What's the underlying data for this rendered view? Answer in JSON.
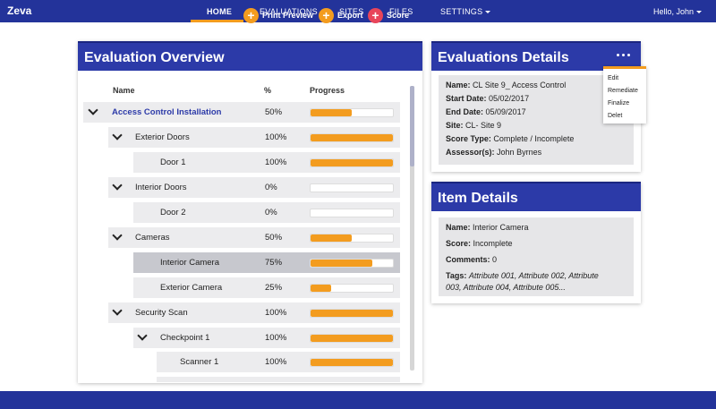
{
  "app": {
    "brand": "Zeva"
  },
  "nav": {
    "items": [
      {
        "label": "HOME",
        "active": true
      },
      {
        "label": "EVALUATIONS"
      },
      {
        "label": "SITES"
      },
      {
        "label": "FILES"
      },
      {
        "label": "SETTINGS",
        "has_caret": true
      }
    ],
    "user": "Hello, John"
  },
  "overview": {
    "title": "Evaluation Overview",
    "actions": [
      {
        "label": "Print Preview",
        "icon": "plus",
        "color": "#f39c1f"
      },
      {
        "label": "Export",
        "icon": "plus",
        "color": "#f39c1f"
      },
      {
        "label": "Score",
        "icon": "plus",
        "color": "#e8455a"
      }
    ],
    "columns": {
      "name": "Name",
      "percent": "%",
      "progress": "Progress"
    },
    "rows": [
      {
        "name": "Access Control Installation",
        "percent": "50%",
        "progress": 0.5,
        "level": 0,
        "expanded": true,
        "link": true
      },
      {
        "name": "Exterior Doors",
        "percent": "100%",
        "progress": 1.0,
        "level": 1,
        "expanded": true
      },
      {
        "name": "Door 1",
        "percent": "100%",
        "progress": 1.0,
        "level": 2
      },
      {
        "name": "Interior Doors",
        "percent": "0%",
        "progress": 0.0,
        "level": 1,
        "expanded": true
      },
      {
        "name": "Door 2",
        "percent": "0%",
        "progress": 0.0,
        "level": 2
      },
      {
        "name": "Cameras",
        "percent": "50%",
        "progress": 0.5,
        "level": 1,
        "expanded": true
      },
      {
        "name": "Interior Camera",
        "percent": "75%",
        "progress": 0.75,
        "level": 2,
        "selected": true
      },
      {
        "name": "Exterior Camera",
        "percent": "25%",
        "progress": 0.25,
        "level": 2
      },
      {
        "name": "Security Scan",
        "percent": "100%",
        "progress": 1.0,
        "level": 1,
        "expanded": true
      },
      {
        "name": "Checkpoint 1",
        "percent": "100%",
        "progress": 1.0,
        "level": 2,
        "expanded": true
      },
      {
        "name": "Scanner 1",
        "percent": "100%",
        "progress": 1.0,
        "level": 3
      }
    ]
  },
  "eval_details": {
    "title": "Evaluations Details",
    "name_label": "Name:",
    "name_value": "CL Site 9_ Access Control",
    "start_label": "Start Date:",
    "start_value": "05/02/2017",
    "end_label": "End Date:",
    "end_value": "05/09/2017",
    "site_label": "Site:",
    "site_value": "CL- Site 9",
    "score_type_label": "Score Type:",
    "score_type_value": "Complete / Incomplete",
    "assessor_label": "Assessor(s):",
    "assessor_value": "John Byrnes",
    "menu": [
      "Edit",
      "Remediate",
      "Finalize",
      "Delet"
    ]
  },
  "item_details": {
    "title": "Item Details",
    "name_label": "Name:",
    "name_value": "Interior Camera",
    "score_label": "Score:",
    "score_value": "Incomplete",
    "comments_label": "Comments:",
    "comments_value": "0",
    "tags_label": "Tags:",
    "tags_value": "Attribute 001, Attribute 002, Attribute 003, Attribute 004, Attribute 005..."
  },
  "colors": {
    "navy": "#23339a",
    "panel_header": "#2c3aa8",
    "accent": "#f39c1f",
    "score": "#e8455a"
  }
}
